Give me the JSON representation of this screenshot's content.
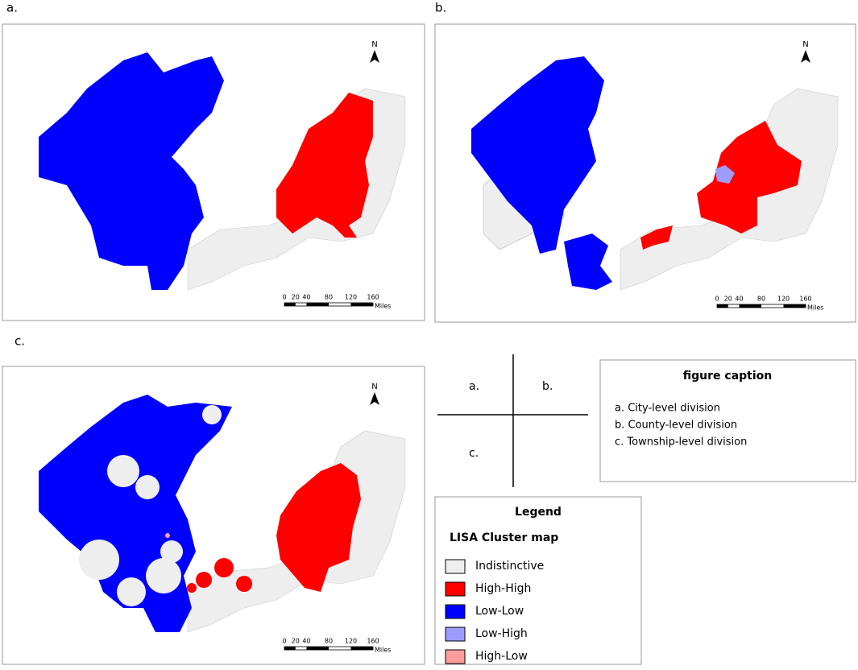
{
  "panels": [
    {
      "label": "a.",
      "north": "N",
      "scale_labels": [
        "0",
        "20",
        "40",
        "80",
        "120",
        "160"
      ],
      "scale_unit": "Miles"
    },
    {
      "label": "b.",
      "north": "N",
      "scale_labels": [
        "0",
        "20",
        "40",
        "80",
        "120",
        "160"
      ],
      "scale_unit": "Miles"
    },
    {
      "label": "c.",
      "north": "N",
      "scale_labels": [
        "0",
        "20",
        "40",
        "80",
        "120",
        "160"
      ],
      "scale_unit": "Miles"
    }
  ],
  "layout_key": {
    "a": "a.",
    "b": "b.",
    "c": "c."
  },
  "caption": {
    "title": "figure caption",
    "items": [
      "a. City-level division",
      "b. County-level division",
      "c. Township-level division"
    ]
  },
  "legend": {
    "title": "Legend",
    "subtitle": "LISA Cluster map",
    "items": [
      {
        "label": "Indistinctive",
        "color": "#eeeeee"
      },
      {
        "label": "High-High",
        "color": "#ff0000"
      },
      {
        "label": "Low-Low",
        "color": "#0000ff"
      },
      {
        "label": "Low-High",
        "color": "#9c9cff"
      },
      {
        "label": "High-Low",
        "color": "#ff9c9c"
      }
    ]
  }
}
